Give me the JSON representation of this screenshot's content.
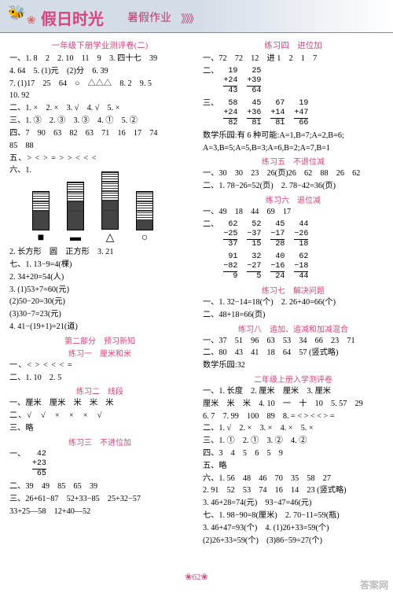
{
  "header": {
    "bee": "🐝",
    "flower": "❀",
    "title": "假日时光",
    "subtitle": "暑假作业",
    "chev": "》》》"
  },
  "left": {
    "t1": "一年级下册学业测评卷(二)",
    "l1": "一、1. 8　2　2. 10　11　9　3. 四十七　39",
    "l2": "4. 64　5. (1)元　(2)分　6. 39",
    "l3": "7. (1)17　25　64　○　△△△　8. 2　9. 5",
    "l4": "10. 92",
    "l5": "二、1. ×　2. ×　3. √　4. √　5. ×",
    "l6": "三、1. ③　2. ③　3. ③　4. ①　5. ②",
    "l7": "四、7　90　63　82　63　71　16　17　74",
    "l8": "85　88",
    "l9": "五、> < > = > > < < <",
    "l10": "六、1.",
    "chart": {
      "bars": [
        {
          "segments": [
            {
              "h": 12,
              "type": "fill"
            },
            {
              "h": 12,
              "type": "fill"
            },
            {
              "h": 12,
              "type": "hatch"
            },
            {
              "h": 12,
              "type": "hatch"
            }
          ],
          "label": "■"
        },
        {
          "segments": [
            {
              "h": 12,
              "type": "fill"
            },
            {
              "h": 12,
              "type": "fill"
            },
            {
              "h": 12,
              "type": "fill"
            },
            {
              "h": 12,
              "type": "hatch"
            },
            {
              "h": 12,
              "type": "hatch"
            }
          ],
          "label": "▬"
        },
        {
          "segments": [
            {
              "h": 12,
              "type": "fill"
            },
            {
              "h": 12,
              "type": "fill"
            },
            {
              "h": 12,
              "type": "fill"
            },
            {
              "h": 12,
              "type": "hatch"
            },
            {
              "h": 12,
              "type": "hatch"
            },
            {
              "h": 12,
              "type": "hatch"
            }
          ],
          "label": "△"
        },
        {
          "segments": [
            {
              "h": 12,
              "type": "fill"
            },
            {
              "h": 12,
              "type": "hatch"
            },
            {
              "h": 12,
              "type": "hatch"
            },
            {
              "h": 12,
              "type": "hatch"
            }
          ],
          "label": "○"
        }
      ]
    },
    "l11": "2. 长方形　圆　正方形　3. 21",
    "l12": "七、1. 13−9=4(棵)",
    "l13": "2. 34+20=54(人)",
    "l14": "3. (1)53+7=60(元)",
    "l15": "(2)50−20=30(元)",
    "l16": "(3)30−7=23(元)",
    "l17": "4. 41−(19+1)=21(道)",
    "t2": "第二部分　预习新知",
    "t3": "练习一　厘米和米",
    "l18": "一、< > < < < =",
    "l19": "二、1. 10　2. 5",
    "t4": "练习二　线段",
    "l20": "一、厘米　厘米　米　米　米",
    "l21": "二、√　√　×　×　×　√",
    "l22": "三、略",
    "t5": "练习三　不进位加",
    "v1": {
      "a": "42",
      "b": "+23",
      "c": "65"
    },
    "l23": "一、",
    "l24": "二、39　49　85　65　39",
    "l25": "三、26+61−87　52+33−85　25+32−57",
    "l26": "33+25—58　12+40—52"
  },
  "right": {
    "t1": "练习四　进位加",
    "l1": "一、72　72　12　进 1　2　1　7",
    "v_r1a": {
      "a": "19",
      "b": "+24",
      "c": "43"
    },
    "v_r1b": {
      "a": "25",
      "b": "+39",
      "c": "64"
    },
    "v_r1c": {
      "a": "58",
      "b": "+24",
      "c": "82"
    },
    "v_r1d": {
      "a": "45",
      "b": "+36",
      "c": "81"
    },
    "v_r1e": {
      "a": "67",
      "b": "+14",
      "c": "81"
    },
    "v_r1f": {
      "a": "19",
      "b": "+47",
      "c": "66"
    },
    "l2": "二、",
    "l3": "三、",
    "l4": "数学乐园:有 6 种可能:A=1,B=7;A=2,B=6;",
    "l5": "A=3,B=5;A=5,B=3;A=6,B=2;A=7,B=1",
    "t2": "练习五　不退位减",
    "l6": "一、30　30　23　26(页)26　62　88　26　62",
    "l7": "二、1. 78−26=52(页)　2. 78−42=36(页)",
    "t3": "练习六　退位减",
    "l8": "一、49　18　44　69　17",
    "v_r2a": {
      "a": "62",
      "b": "−25",
      "c": "37"
    },
    "v_r2b": {
      "a": "52",
      "b": "−37",
      "c": "15"
    },
    "v_r2c": {
      "a": "45",
      "b": "−17",
      "c": "28"
    },
    "v_r2d": {
      "a": "44",
      "b": "−26",
      "c": "18"
    },
    "v_r2e": {
      "a": "91",
      "b": "−82",
      "c": "9"
    },
    "v_r2f": {
      "a": "32",
      "b": "−27",
      "c": "5"
    },
    "v_r2g": {
      "a": "40",
      "b": "−16",
      "c": "24"
    },
    "v_r2h": {
      "a": "62",
      "b": "−18",
      "c": "44"
    },
    "l9": "二、",
    "t4": "练习七　解决问题",
    "l10": "一、1. 32−14=18(个)　2. 26+40=66(个)",
    "l11": "二、48+18=66(页)",
    "t5": "练习八　追加、追减和加减混合",
    "l12": "一、37　51　96　63　53　34　66　23　71",
    "l13": "二、80　43　41　18　64　57 (竖式略)",
    "l14": "数学乐园:32",
    "t6": "二年级上册入学测评卷",
    "l15": "一、1. 长度　2. 厘米　厘米　3. 厘米",
    "l16": "厘米　米　米　4. 10　一　十　10　5. 57　29",
    "l17": "6. 7　7. 99　100　89　8. = < > < < > =",
    "l18": "二、1. √　2. ×　3. ×　4. ×　5. ×",
    "l19": "三、1. ①　2. ①　3. ②　4. ②",
    "l20": "四、3　4　5　6　5　9",
    "l21": "五、略",
    "l22": "六、1. 56　48　46　70　35　58　27",
    "l23": "2. 91　52　53　74　16　14　23 (竖式略)",
    "l24": "3. 46+28=74(元)　93−47=46(元)",
    "l25": "七、1. 98−90=8(厘米)　2. 70−11=59(瓶)",
    "l26": "3. 46+47=93(个)　4. (1)26+33=59(个)",
    "l27": "(2)26+33=59(个)　(3)86−59=27(个)"
  },
  "footer": {
    "page": "❀62❀"
  },
  "wm": {
    "a": "答案网",
    "b": "www.MXQE.com"
  }
}
